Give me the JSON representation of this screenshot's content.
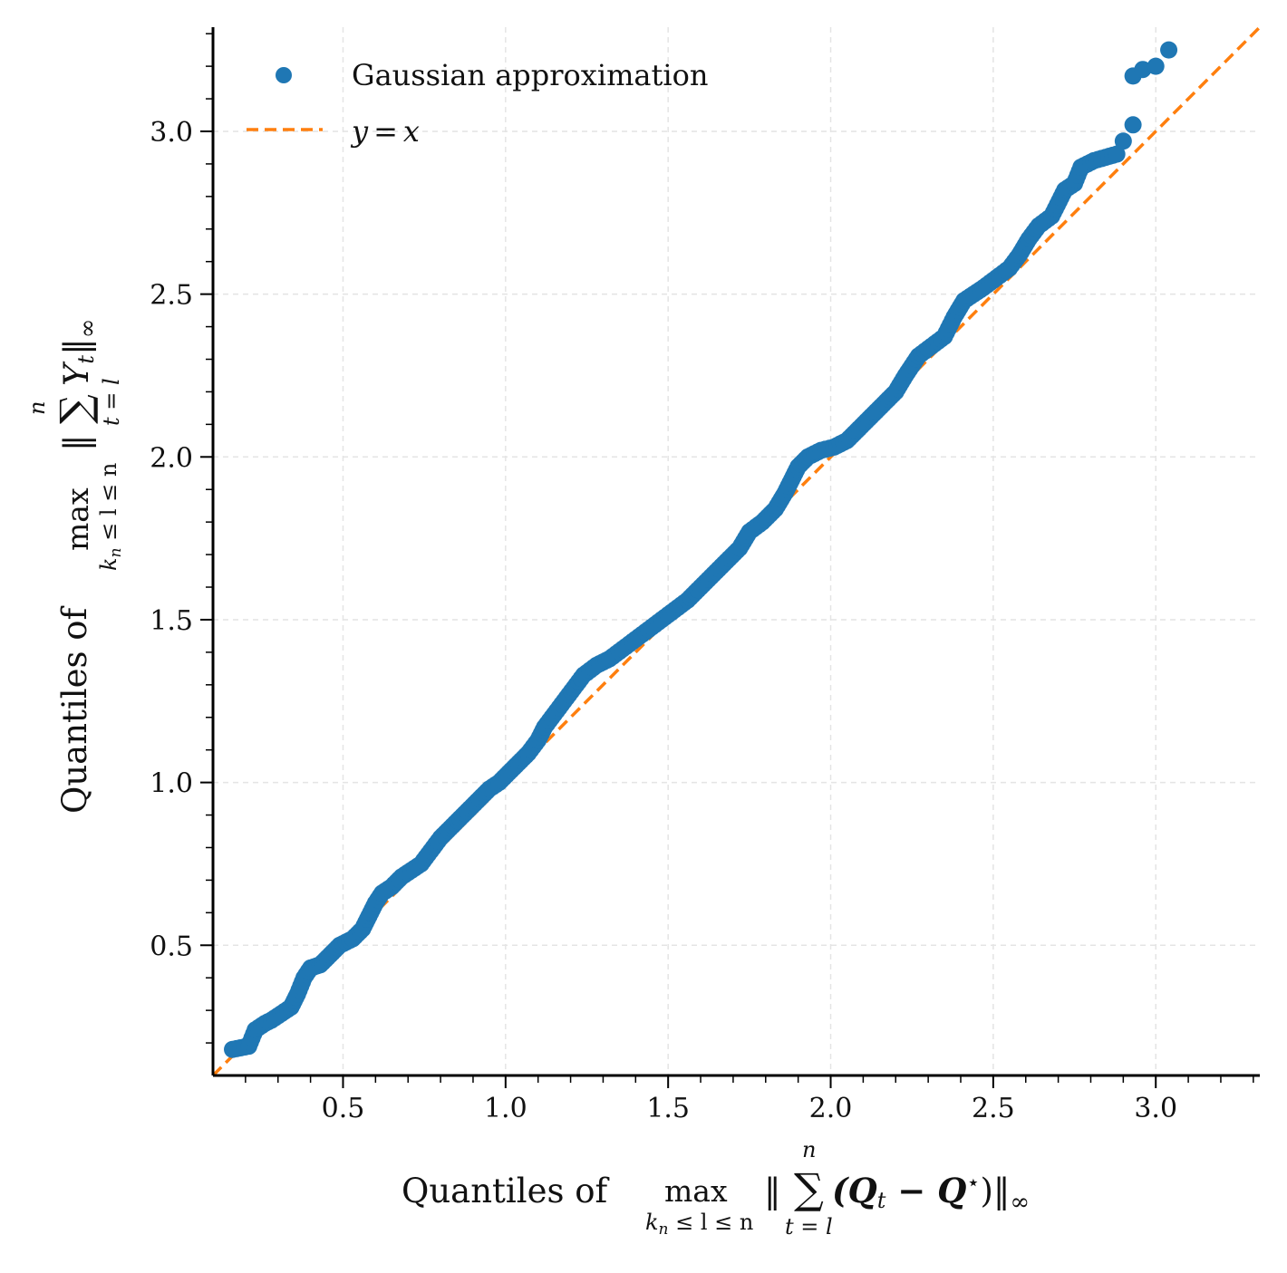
{
  "chart_data": {
    "type": "scatter",
    "xlabel": "Quantiles of max_{k_n ≤ l ≤ n} ‖ Σ_{t=l}^{n} (Q_t − Q⋆) ‖_∞",
    "ylabel": "Quantiles of max_{k_n ≤ l ≤ n} ‖ Σ_{t=l}^{n} Y_t ‖_∞",
    "xlabel_parts": {
      "prefix": "Quantiles of",
      "op": "max",
      "op_sub": "k",
      "op_sub_n": "n",
      "op_sub_rest": " ≤ l ≤ n",
      "norm_open": "‖",
      "sum": "∑",
      "sum_top": "n",
      "sum_bottom": "t = l",
      "body": "(Q",
      "body_sub": "t",
      "body_mid": " − Q",
      "body_sup": "⋆",
      "body_close": ")‖",
      "norm_sub": "∞"
    },
    "ylabel_parts": {
      "prefix": "Quantiles of",
      "op": "max",
      "op_sub": "k",
      "op_sub_n": "n",
      "op_sub_rest": " ≤ l ≤ n",
      "norm_open": "‖",
      "sum": "∑",
      "sum_top": "n",
      "sum_bottom": "t = l",
      "body": "Y",
      "body_sub": "t",
      "body_close": "‖",
      "norm_sub": "∞"
    },
    "xlim": [
      0.1,
      3.32
    ],
    "ylim": [
      0.1,
      3.32
    ],
    "xticks": [
      0.5,
      1.0,
      1.5,
      2.0,
      2.5,
      3.0
    ],
    "yticks": [
      0.5,
      1.0,
      1.5,
      2.0,
      2.5,
      3.0
    ],
    "xtick_labels": [
      "0.5",
      "1.0",
      "1.5",
      "2.0",
      "2.5",
      "3.0"
    ],
    "ytick_labels": [
      "0.5",
      "1.0",
      "1.5",
      "2.0",
      "2.5",
      "3.0"
    ],
    "grid": true,
    "legend_position": "top-left",
    "series": [
      {
        "name": "Gaussian approximation",
        "kind": "scatter",
        "color": "#1f77b4",
        "points": [
          [
            0.16,
            0.18
          ],
          [
            0.21,
            0.19
          ],
          [
            0.23,
            0.24
          ],
          [
            0.26,
            0.26
          ],
          [
            0.28,
            0.27
          ],
          [
            0.31,
            0.29
          ],
          [
            0.34,
            0.31
          ],
          [
            0.36,
            0.35
          ],
          [
            0.38,
            0.4
          ],
          [
            0.4,
            0.43
          ],
          [
            0.43,
            0.44
          ],
          [
            0.46,
            0.47
          ],
          [
            0.49,
            0.5
          ],
          [
            0.51,
            0.51
          ],
          [
            0.53,
            0.52
          ],
          [
            0.56,
            0.55
          ],
          [
            0.58,
            0.59
          ],
          [
            0.6,
            0.63
          ],
          [
            0.62,
            0.66
          ],
          [
            0.65,
            0.68
          ],
          [
            0.68,
            0.71
          ],
          [
            0.71,
            0.73
          ],
          [
            0.74,
            0.75
          ],
          [
            0.77,
            0.79
          ],
          [
            0.8,
            0.83
          ],
          [
            0.83,
            0.86
          ],
          [
            0.86,
            0.89
          ],
          [
            0.89,
            0.92
          ],
          [
            0.92,
            0.95
          ],
          [
            0.95,
            0.98
          ],
          [
            0.98,
            1.0
          ],
          [
            1.01,
            1.03
          ],
          [
            1.04,
            1.06
          ],
          [
            1.07,
            1.09
          ],
          [
            1.1,
            1.13
          ],
          [
            1.12,
            1.17
          ],
          [
            1.15,
            1.21
          ],
          [
            1.18,
            1.25
          ],
          [
            1.21,
            1.29
          ],
          [
            1.24,
            1.33
          ],
          [
            1.28,
            1.36
          ],
          [
            1.32,
            1.38
          ],
          [
            1.36,
            1.41
          ],
          [
            1.4,
            1.44
          ],
          [
            1.44,
            1.47
          ],
          [
            1.48,
            1.5
          ],
          [
            1.52,
            1.53
          ],
          [
            1.56,
            1.56
          ],
          [
            1.6,
            1.6
          ],
          [
            1.64,
            1.64
          ],
          [
            1.68,
            1.68
          ],
          [
            1.72,
            1.72
          ],
          [
            1.75,
            1.77
          ],
          [
            1.79,
            1.8
          ],
          [
            1.83,
            1.84
          ],
          [
            1.86,
            1.89
          ],
          [
            1.88,
            1.93
          ],
          [
            1.9,
            1.97
          ],
          [
            1.93,
            2.0
          ],
          [
            1.97,
            2.02
          ],
          [
            2.01,
            2.03
          ],
          [
            2.05,
            2.05
          ],
          [
            2.08,
            2.08
          ],
          [
            2.11,
            2.11
          ],
          [
            2.14,
            2.14
          ],
          [
            2.17,
            2.17
          ],
          [
            2.2,
            2.2
          ],
          [
            2.23,
            2.25
          ],
          [
            2.27,
            2.31
          ],
          [
            2.31,
            2.34
          ],
          [
            2.35,
            2.37
          ],
          [
            2.38,
            2.43
          ],
          [
            2.41,
            2.48
          ],
          [
            2.44,
            2.5
          ],
          [
            2.47,
            2.52
          ],
          [
            2.51,
            2.55
          ],
          [
            2.55,
            2.58
          ],
          [
            2.58,
            2.62
          ],
          [
            2.61,
            2.67
          ],
          [
            2.64,
            2.71
          ],
          [
            2.68,
            2.74
          ],
          [
            2.72,
            2.82
          ],
          [
            2.75,
            2.84
          ],
          [
            2.77,
            2.89
          ],
          [
            2.81,
            2.91
          ],
          [
            2.88,
            2.93
          ],
          [
            2.9,
            2.97
          ],
          [
            2.93,
            3.02
          ],
          [
            2.93,
            3.17
          ],
          [
            2.96,
            3.19
          ],
          [
            3.0,
            3.2
          ],
          [
            3.04,
            3.25
          ]
        ]
      },
      {
        "name": "y = x",
        "kind": "line",
        "style": "dashed",
        "color": "#ff7f0e",
        "points": [
          [
            0.1,
            0.1
          ],
          [
            3.32,
            3.32
          ]
        ]
      }
    ],
    "legend": [
      {
        "label": "Gaussian approximation",
        "marker": "dot",
        "color": "#1f77b4"
      },
      {
        "label_italic_left": "y",
        "label_eq": "=",
        "label_italic_right": "x",
        "marker": "dashed-line",
        "color": "#ff7f0e"
      }
    ]
  }
}
